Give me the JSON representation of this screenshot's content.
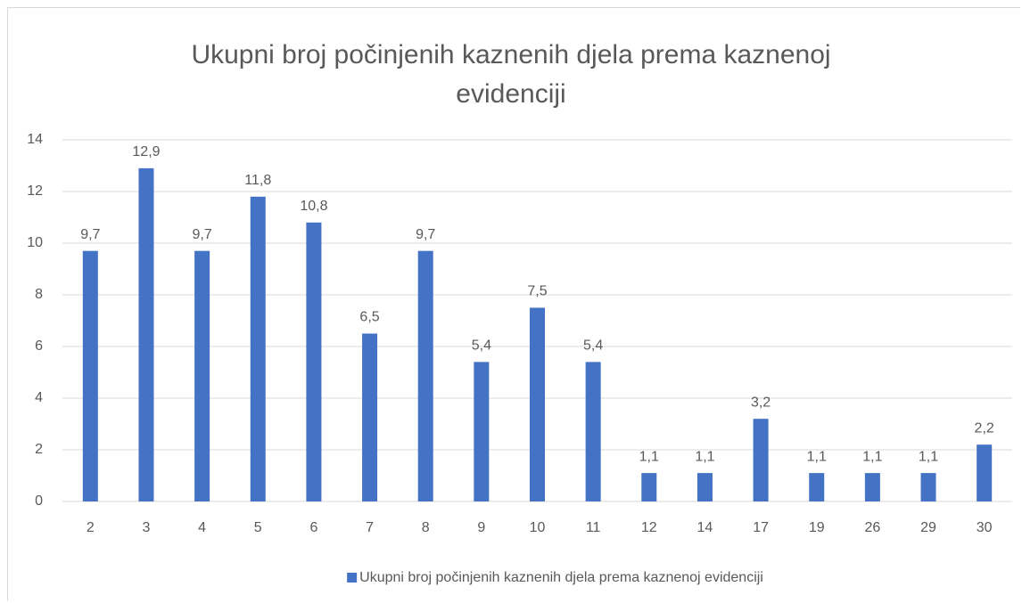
{
  "chart_data": {
    "type": "bar",
    "title": "Ukupni broj počinjenih kaznenih djela prema kaznenoj evidenciji",
    "categories": [
      "2",
      "3",
      "4",
      "5",
      "6",
      "7",
      "8",
      "9",
      "10",
      "11",
      "12",
      "14",
      "17",
      "19",
      "26",
      "29",
      "30"
    ],
    "series": [
      {
        "name": "Ukupni broj počinjenih kaznenih djela prema kaznenoj evidenciji",
        "color": "#4472c4",
        "values": [
          9.7,
          12.9,
          9.7,
          11.8,
          10.8,
          6.5,
          9.7,
          5.4,
          7.5,
          5.4,
          1.1,
          1.1,
          3.2,
          1.1,
          1.1,
          1.1,
          2.2
        ],
        "value_labels": [
          "9,7",
          "12,9",
          "9,7",
          "11,8",
          "10,8",
          "6,5",
          "9,7",
          "5,4",
          "7,5",
          "5,4",
          "1,1",
          "1,1",
          "3,2",
          "1,1",
          "1,1",
          "1,1",
          "2,2"
        ]
      }
    ],
    "ylim": [
      0,
      14
    ],
    "yticks": [
      0,
      2,
      4,
      6,
      8,
      10,
      12,
      14
    ],
    "grid": true,
    "legend": "bottom"
  }
}
